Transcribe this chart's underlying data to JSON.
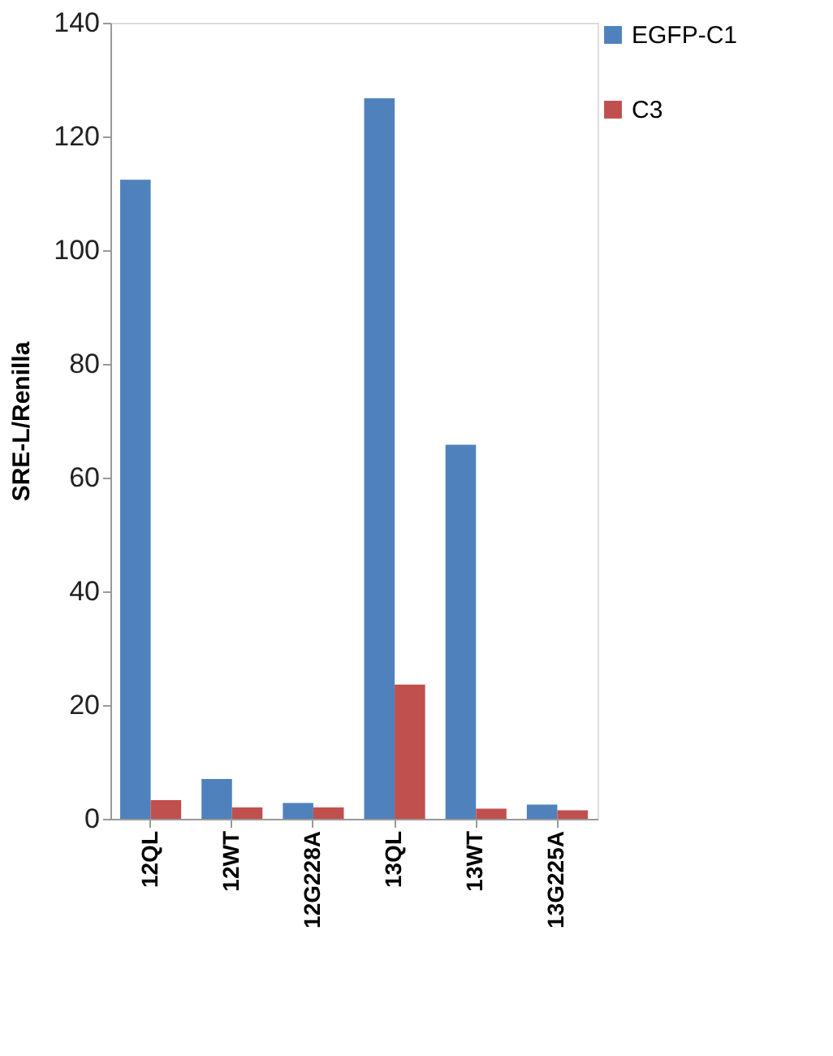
{
  "chart_data": {
    "type": "bar",
    "ylabel": "SRE-L/Renilla",
    "categories": [
      "12QL",
      "12WT",
      "12G228A",
      "13QL",
      "13WT",
      "13G225A"
    ],
    "series": [
      {
        "name": "EGFP-C1",
        "color": "#4f81bd",
        "values": [
          112.4,
          7.0,
          2.8,
          126.7,
          65.8,
          2.5
        ]
      },
      {
        "name": "C3",
        "color": "#c0504d",
        "values": [
          3.3,
          2.0,
          2.0,
          23.6,
          1.8,
          1.5
        ]
      }
    ],
    "ylim": [
      0,
      140
    ],
    "yticks": [
      0,
      20,
      40,
      60,
      80,
      100,
      120,
      140
    ],
    "grid": false,
    "legend": "top right"
  }
}
